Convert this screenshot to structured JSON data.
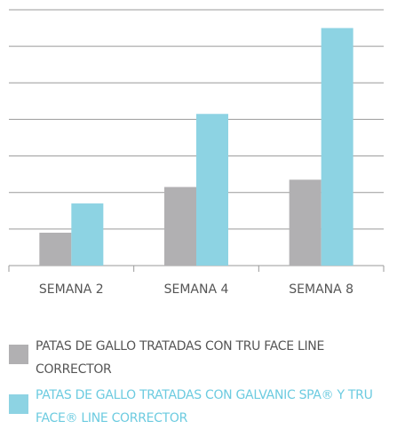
{
  "chart_data": {
    "type": "bar",
    "categories": [
      "SEMANA 2",
      "SEMANA 4",
      "SEMANA 8"
    ],
    "series": [
      {
        "name": "PATAS DE GALLO TRATADAS CON TRU FACE LINE CORRECTOR",
        "color": "#b1b0b2",
        "values": [
          0.9,
          2.15,
          2.35
        ]
      },
      {
        "name": "PATAS DE GALLO TRATADAS CON GALVANIC SPA® Y TRU FACE® LINE CORRECTOR",
        "color": "#8dd3e3",
        "values": [
          1.7,
          4.15,
          6.5
        ]
      }
    ],
    "ylim": [
      0,
      7
    ],
    "yticks": [
      0,
      1,
      2,
      3,
      4,
      5,
      6,
      7
    ],
    "grid": true
  }
}
